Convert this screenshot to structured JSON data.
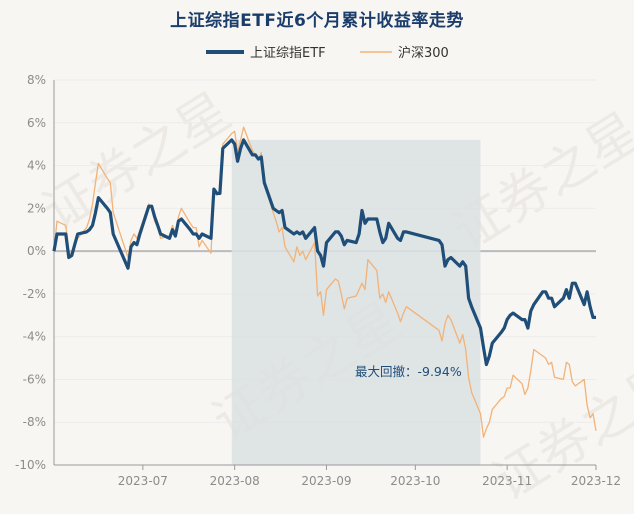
{
  "title": "上证综指ETF近6个月累计收益率走势",
  "watermark": "证券之星",
  "colors": {
    "etf": "#1f4e79",
    "hs300": "#f2b278",
    "drawdown": "#dbe1e3",
    "zero": "#b9bbbd",
    "axis": "#8c8c8c",
    "grid": "#ececec"
  },
  "chart_data": {
    "type": "line",
    "ylim": [
      -10,
      8
    ],
    "yticks": [
      "8%",
      "6%",
      "4%",
      "2%",
      "0%",
      "-2%",
      "-4%",
      "-6%",
      "-8%",
      "-10%"
    ],
    "xlim": [
      "2023-06-01",
      "2023-12-01"
    ],
    "xticks": [
      {
        "date": "2023-07-01",
        "label": "2023-07"
      },
      {
        "date": "2023-08-01",
        "label": "2023-08"
      },
      {
        "date": "2023-09-01",
        "label": "2023-09"
      },
      {
        "date": "2023-10-01",
        "label": "2023-10"
      },
      {
        "date": "2023-11-01",
        "label": "2023-11"
      },
      {
        "date": "2023-12-01",
        "label": "2023-12"
      }
    ],
    "legend": [
      "上证综指ETF",
      "沪深300"
    ],
    "drawdown": {
      "start": "2023-07-31",
      "end": "2023-10-23",
      "label": "最大回撤：-9.94%"
    },
    "series": [
      {
        "name": "上证综指ETF",
        "points": [
          [
            "2023-06-01",
            0.0
          ],
          [
            "2023-06-02",
            0.8
          ],
          [
            "2023-06-05",
            0.8
          ],
          [
            "2023-06-06",
            -0.3
          ],
          [
            "2023-06-07",
            -0.2
          ],
          [
            "2023-06-08",
            0.3
          ],
          [
            "2023-06-09",
            0.8
          ],
          [
            "2023-06-12",
            0.9
          ],
          [
            "2023-06-13",
            1.0
          ],
          [
            "2023-06-14",
            1.2
          ],
          [
            "2023-06-15",
            1.8
          ],
          [
            "2023-06-16",
            2.5
          ],
          [
            "2023-06-19",
            2.0
          ],
          [
            "2023-06-20",
            1.8
          ],
          [
            "2023-06-21",
            0.8
          ],
          [
            "2023-06-26",
            -0.8
          ],
          [
            "2023-06-27",
            0.2
          ],
          [
            "2023-06-28",
            0.4
          ],
          [
            "2023-06-29",
            0.3
          ],
          [
            "2023-06-30",
            0.8
          ],
          [
            "2023-07-03",
            2.1
          ],
          [
            "2023-07-04",
            2.1
          ],
          [
            "2023-07-05",
            1.6
          ],
          [
            "2023-07-06",
            1.2
          ],
          [
            "2023-07-07",
            0.8
          ],
          [
            "2023-07-10",
            0.6
          ],
          [
            "2023-07-11",
            1.0
          ],
          [
            "2023-07-12",
            0.7
          ],
          [
            "2023-07-13",
            1.4
          ],
          [
            "2023-07-14",
            1.5
          ],
          [
            "2023-07-17",
            1.0
          ],
          [
            "2023-07-18",
            0.8
          ],
          [
            "2023-07-19",
            0.8
          ],
          [
            "2023-07-20",
            0.6
          ],
          [
            "2023-07-21",
            0.8
          ],
          [
            "2023-07-24",
            0.6
          ],
          [
            "2023-07-25",
            2.9
          ],
          [
            "2023-07-26",
            2.7
          ],
          [
            "2023-07-27",
            2.7
          ],
          [
            "2023-07-28",
            4.8
          ],
          [
            "2023-07-31",
            5.2
          ],
          [
            "2023-08-01",
            5.0
          ],
          [
            "2023-08-02",
            4.2
          ],
          [
            "2023-08-03",
            4.8
          ],
          [
            "2023-08-04",
            5.2
          ],
          [
            "2023-08-07",
            4.5
          ],
          [
            "2023-08-08",
            4.5
          ],
          [
            "2023-08-09",
            4.3
          ],
          [
            "2023-08-10",
            4.4
          ],
          [
            "2023-08-11",
            3.2
          ],
          [
            "2023-08-14",
            2.0
          ],
          [
            "2023-08-15",
            1.9
          ],
          [
            "2023-08-16",
            1.8
          ],
          [
            "2023-08-17",
            1.9
          ],
          [
            "2023-08-18",
            1.1
          ],
          [
            "2023-08-21",
            0.8
          ],
          [
            "2023-08-22",
            0.9
          ],
          [
            "2023-08-23",
            0.8
          ],
          [
            "2023-08-24",
            0.9
          ],
          [
            "2023-08-25",
            0.6
          ],
          [
            "2023-08-28",
            1.1
          ],
          [
            "2023-08-29",
            0.0
          ],
          [
            "2023-08-30",
            -0.2
          ],
          [
            "2023-08-31",
            -0.7
          ],
          [
            "2023-09-01",
            0.4
          ],
          [
            "2023-09-04",
            0.9
          ],
          [
            "2023-09-05",
            0.9
          ],
          [
            "2023-09-06",
            0.7
          ],
          [
            "2023-09-07",
            0.3
          ],
          [
            "2023-09-08",
            0.5
          ],
          [
            "2023-09-11",
            0.4
          ],
          [
            "2023-09-12",
            0.8
          ],
          [
            "2023-09-13",
            1.9
          ],
          [
            "2023-09-14",
            1.3
          ],
          [
            "2023-09-15",
            1.5
          ],
          [
            "2023-09-18",
            1.5
          ],
          [
            "2023-09-19",
            0.9
          ],
          [
            "2023-09-20",
            0.4
          ],
          [
            "2023-09-21",
            0.6
          ],
          [
            "2023-09-22",
            1.3
          ],
          [
            "2023-09-25",
            0.6
          ],
          [
            "2023-09-26",
            0.5
          ],
          [
            "2023-09-27",
            0.9
          ],
          [
            "2023-09-28",
            0.9
          ],
          [
            "2023-10-09",
            0.5
          ],
          [
            "2023-10-10",
            0.3
          ],
          [
            "2023-10-11",
            -0.7
          ],
          [
            "2023-10-12",
            -0.4
          ],
          [
            "2023-10-13",
            -0.3
          ],
          [
            "2023-10-16",
            -0.7
          ],
          [
            "2023-10-17",
            -0.5
          ],
          [
            "2023-10-18",
            -0.7
          ],
          [
            "2023-10-19",
            -2.2
          ],
          [
            "2023-10-20",
            -2.6
          ],
          [
            "2023-10-23",
            -3.6
          ],
          [
            "2023-10-24",
            -4.5
          ],
          [
            "2023-10-25",
            -5.3
          ],
          [
            "2023-10-26",
            -4.9
          ],
          [
            "2023-10-27",
            -4.3
          ],
          [
            "2023-10-30",
            -3.8
          ],
          [
            "2023-10-31",
            -3.6
          ],
          [
            "2023-11-01",
            -3.2
          ],
          [
            "2023-11-02",
            -3.0
          ],
          [
            "2023-11-03",
            -2.9
          ],
          [
            "2023-11-06",
            -3.2
          ],
          [
            "2023-11-07",
            -3.2
          ],
          [
            "2023-11-08",
            -3.6
          ],
          [
            "2023-11-09",
            -2.8
          ],
          [
            "2023-11-10",
            -2.5
          ],
          [
            "2023-11-13",
            -1.9
          ],
          [
            "2023-11-14",
            -1.9
          ],
          [
            "2023-11-15",
            -2.2
          ],
          [
            "2023-11-16",
            -2.2
          ],
          [
            "2023-11-17",
            -2.6
          ],
          [
            "2023-11-20",
            -2.2
          ],
          [
            "2023-11-21",
            -1.8
          ],
          [
            "2023-11-22",
            -2.2
          ],
          [
            "2023-11-23",
            -1.5
          ],
          [
            "2023-11-24",
            -1.5
          ],
          [
            "2023-11-27",
            -2.5
          ],
          [
            "2023-11-28",
            -1.9
          ],
          [
            "2023-11-29",
            -2.6
          ],
          [
            "2023-11-30",
            -3.1
          ],
          [
            "2023-12-01",
            -3.1
          ]
        ]
      },
      {
        "name": "沪深300",
        "points": [
          [
            "2023-06-01",
            0.0
          ],
          [
            "2023-06-02",
            1.4
          ],
          [
            "2023-06-05",
            1.2
          ],
          [
            "2023-06-06",
            0.0
          ],
          [
            "2023-06-07",
            -0.2
          ],
          [
            "2023-06-08",
            0.3
          ],
          [
            "2023-06-09",
            0.6
          ],
          [
            "2023-06-12",
            1.1
          ],
          [
            "2023-06-13",
            1.5
          ],
          [
            "2023-06-14",
            2.2
          ],
          [
            "2023-06-15",
            3.2
          ],
          [
            "2023-06-16",
            4.1
          ],
          [
            "2023-06-19",
            3.4
          ],
          [
            "2023-06-20",
            3.2
          ],
          [
            "2023-06-21",
            1.8
          ],
          [
            "2023-06-26",
            -0.3
          ],
          [
            "2023-06-27",
            0.5
          ],
          [
            "2023-06-28",
            0.8
          ],
          [
            "2023-06-29",
            0.6
          ],
          [
            "2023-06-30",
            1.0
          ],
          [
            "2023-07-03",
            2.2
          ],
          [
            "2023-07-04",
            2.0
          ],
          [
            "2023-07-05",
            1.4
          ],
          [
            "2023-07-06",
            1.1
          ],
          [
            "2023-07-07",
            0.6
          ],
          [
            "2023-07-10",
            0.7
          ],
          [
            "2023-07-11",
            1.2
          ],
          [
            "2023-07-12",
            0.8
          ],
          [
            "2023-07-13",
            1.6
          ],
          [
            "2023-07-14",
            2.0
          ],
          [
            "2023-07-17",
            1.3
          ],
          [
            "2023-07-18",
            1.1
          ],
          [
            "2023-07-19",
            1.1
          ],
          [
            "2023-07-20",
            0.2
          ],
          [
            "2023-07-21",
            0.5
          ],
          [
            "2023-07-24",
            -0.1
          ],
          [
            "2023-07-25",
            2.7
          ],
          [
            "2023-07-26",
            2.6
          ],
          [
            "2023-07-27",
            2.7
          ],
          [
            "2023-07-28",
            5.0
          ],
          [
            "2023-07-31",
            5.5
          ],
          [
            "2023-08-01",
            5.6
          ],
          [
            "2023-08-02",
            4.6
          ],
          [
            "2023-08-03",
            5.2
          ],
          [
            "2023-08-04",
            5.8
          ],
          [
            "2023-08-07",
            4.7
          ],
          [
            "2023-08-08",
            4.5
          ],
          [
            "2023-08-09",
            4.3
          ],
          [
            "2023-08-10",
            4.6
          ],
          [
            "2023-08-11",
            3.2
          ],
          [
            "2023-08-14",
            1.8
          ],
          [
            "2023-08-15",
            1.4
          ],
          [
            "2023-08-16",
            0.9
          ],
          [
            "2023-08-17",
            1.1
          ],
          [
            "2023-08-18",
            0.2
          ],
          [
            "2023-08-21",
            -0.5
          ],
          [
            "2023-08-22",
            0.2
          ],
          [
            "2023-08-23",
            -0.2
          ],
          [
            "2023-08-24",
            0.0
          ],
          [
            "2023-08-25",
            -0.4
          ],
          [
            "2023-08-28",
            0.4
          ],
          [
            "2023-08-29",
            -2.1
          ],
          [
            "2023-08-30",
            -1.9
          ],
          [
            "2023-08-31",
            -3.0
          ],
          [
            "2023-09-01",
            -1.8
          ],
          [
            "2023-09-04",
            -1.3
          ],
          [
            "2023-09-05",
            -1.4
          ],
          [
            "2023-09-06",
            -2.0
          ],
          [
            "2023-09-07",
            -2.7
          ],
          [
            "2023-09-08",
            -2.2
          ],
          [
            "2023-09-11",
            -2.1
          ],
          [
            "2023-09-12",
            -1.8
          ],
          [
            "2023-09-13",
            -1.5
          ],
          [
            "2023-09-14",
            -1.8
          ],
          [
            "2023-09-15",
            -0.4
          ],
          [
            "2023-09-18",
            -0.9
          ],
          [
            "2023-09-19",
            -2.2
          ],
          [
            "2023-09-20",
            -2.0
          ],
          [
            "2023-09-21",
            -2.4
          ],
          [
            "2023-09-22",
            -1.9
          ],
          [
            "2023-09-25",
            -2.9
          ],
          [
            "2023-09-26",
            -3.3
          ],
          [
            "2023-09-27",
            -2.9
          ],
          [
            "2023-09-28",
            -2.6
          ],
          [
            "2023-10-09",
            -3.7
          ],
          [
            "2023-10-10",
            -4.2
          ],
          [
            "2023-10-11",
            -3.4
          ],
          [
            "2023-10-12",
            -3.0
          ],
          [
            "2023-10-13",
            -3.2
          ],
          [
            "2023-10-16",
            -4.3
          ],
          [
            "2023-10-17",
            -3.9
          ],
          [
            "2023-10-18",
            -4.6
          ],
          [
            "2023-10-19",
            -5.9
          ],
          [
            "2023-10-20",
            -6.6
          ],
          [
            "2023-10-23",
            -7.6
          ],
          [
            "2023-10-24",
            -8.7
          ],
          [
            "2023-10-25",
            -8.3
          ],
          [
            "2023-10-26",
            -8.0
          ],
          [
            "2023-10-27",
            -7.4
          ],
          [
            "2023-10-30",
            -6.9
          ],
          [
            "2023-10-31",
            -6.8
          ],
          [
            "2023-11-01",
            -6.4
          ],
          [
            "2023-11-02",
            -6.4
          ],
          [
            "2023-11-03",
            -5.8
          ],
          [
            "2023-11-06",
            -6.2
          ],
          [
            "2023-11-07",
            -6.7
          ],
          [
            "2023-11-08",
            -6.4
          ],
          [
            "2023-11-09",
            -5.6
          ],
          [
            "2023-11-10",
            -4.6
          ],
          [
            "2023-11-13",
            -4.9
          ],
          [
            "2023-11-14",
            -5.0
          ],
          [
            "2023-11-15",
            -5.3
          ],
          [
            "2023-11-16",
            -5.2
          ],
          [
            "2023-11-17",
            -5.9
          ],
          [
            "2023-11-20",
            -6.0
          ],
          [
            "2023-11-21",
            -5.2
          ],
          [
            "2023-11-22",
            -5.3
          ],
          [
            "2023-11-23",
            -6.1
          ],
          [
            "2023-11-24",
            -6.3
          ],
          [
            "2023-11-27",
            -6.0
          ],
          [
            "2023-11-28",
            -7.2
          ],
          [
            "2023-11-29",
            -7.8
          ],
          [
            "2023-11-30",
            -7.6
          ],
          [
            "2023-12-01",
            -8.4
          ]
        ]
      }
    ]
  }
}
